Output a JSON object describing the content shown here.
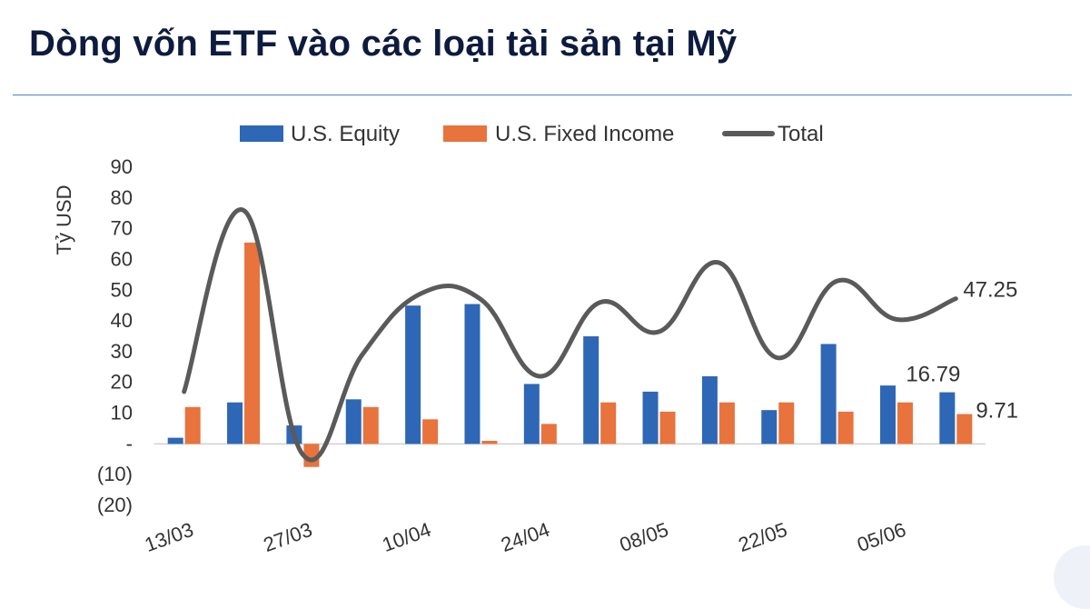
{
  "page": {
    "title": "Dòng vốn ETF vào các loại tài sản tại Mỹ"
  },
  "chart_data": {
    "type": "bar",
    "ylabel": "Tỷ USD",
    "ylim": [
      -20,
      90
    ],
    "yticks": [
      {
        "value": 90,
        "label": "90"
      },
      {
        "value": 80,
        "label": "80"
      },
      {
        "value": 70,
        "label": "70"
      },
      {
        "value": 60,
        "label": "60"
      },
      {
        "value": 50,
        "label": "50"
      },
      {
        "value": 40,
        "label": "40"
      },
      {
        "value": 30,
        "label": "30"
      },
      {
        "value": 20,
        "label": "20"
      },
      {
        "value": 10,
        "label": "10"
      },
      {
        "value": 0,
        "label": "-"
      },
      {
        "value": -10,
        "label": "(10)"
      },
      {
        "value": -20,
        "label": "(20)"
      }
    ],
    "x_tick_labels": [
      "13/03",
      "27/03",
      "10/04",
      "24/04",
      "08/05",
      "22/05",
      "05/06"
    ],
    "x_tick_every": 2,
    "categories_count": 14,
    "series": [
      {
        "name": "U.S. Equity",
        "kind": "bar",
        "color": "#2e67b5",
        "values": [
          2,
          13.5,
          6,
          14.5,
          45,
          45.5,
          19.5,
          35,
          17,
          22,
          11,
          32.5,
          19,
          16.79
        ]
      },
      {
        "name": "U.S. Fixed Income",
        "kind": "bar",
        "color": "#e8733c",
        "values": [
          12,
          65.5,
          -7.5,
          12,
          8,
          1,
          6.5,
          13.5,
          10.5,
          13.5,
          13.5,
          10.5,
          13.5,
          9.71
        ]
      },
      {
        "name": "Total",
        "kind": "line",
        "color": "#5a5a5a",
        "values": [
          17,
          76,
          -3.5,
          29,
          49,
          47,
          22,
          46,
          36.5,
          59,
          28,
          53,
          40.5,
          47.25
        ]
      }
    ],
    "data_labels": [
      {
        "series": "Total",
        "index": 13,
        "text": "47.25"
      },
      {
        "series": "U.S. Equity",
        "index": 13,
        "text": "16.79"
      },
      {
        "series": "U.S. Fixed Income",
        "index": 13,
        "text": "9.71"
      }
    ],
    "legend": {
      "position": "top"
    },
    "grid": false
  }
}
